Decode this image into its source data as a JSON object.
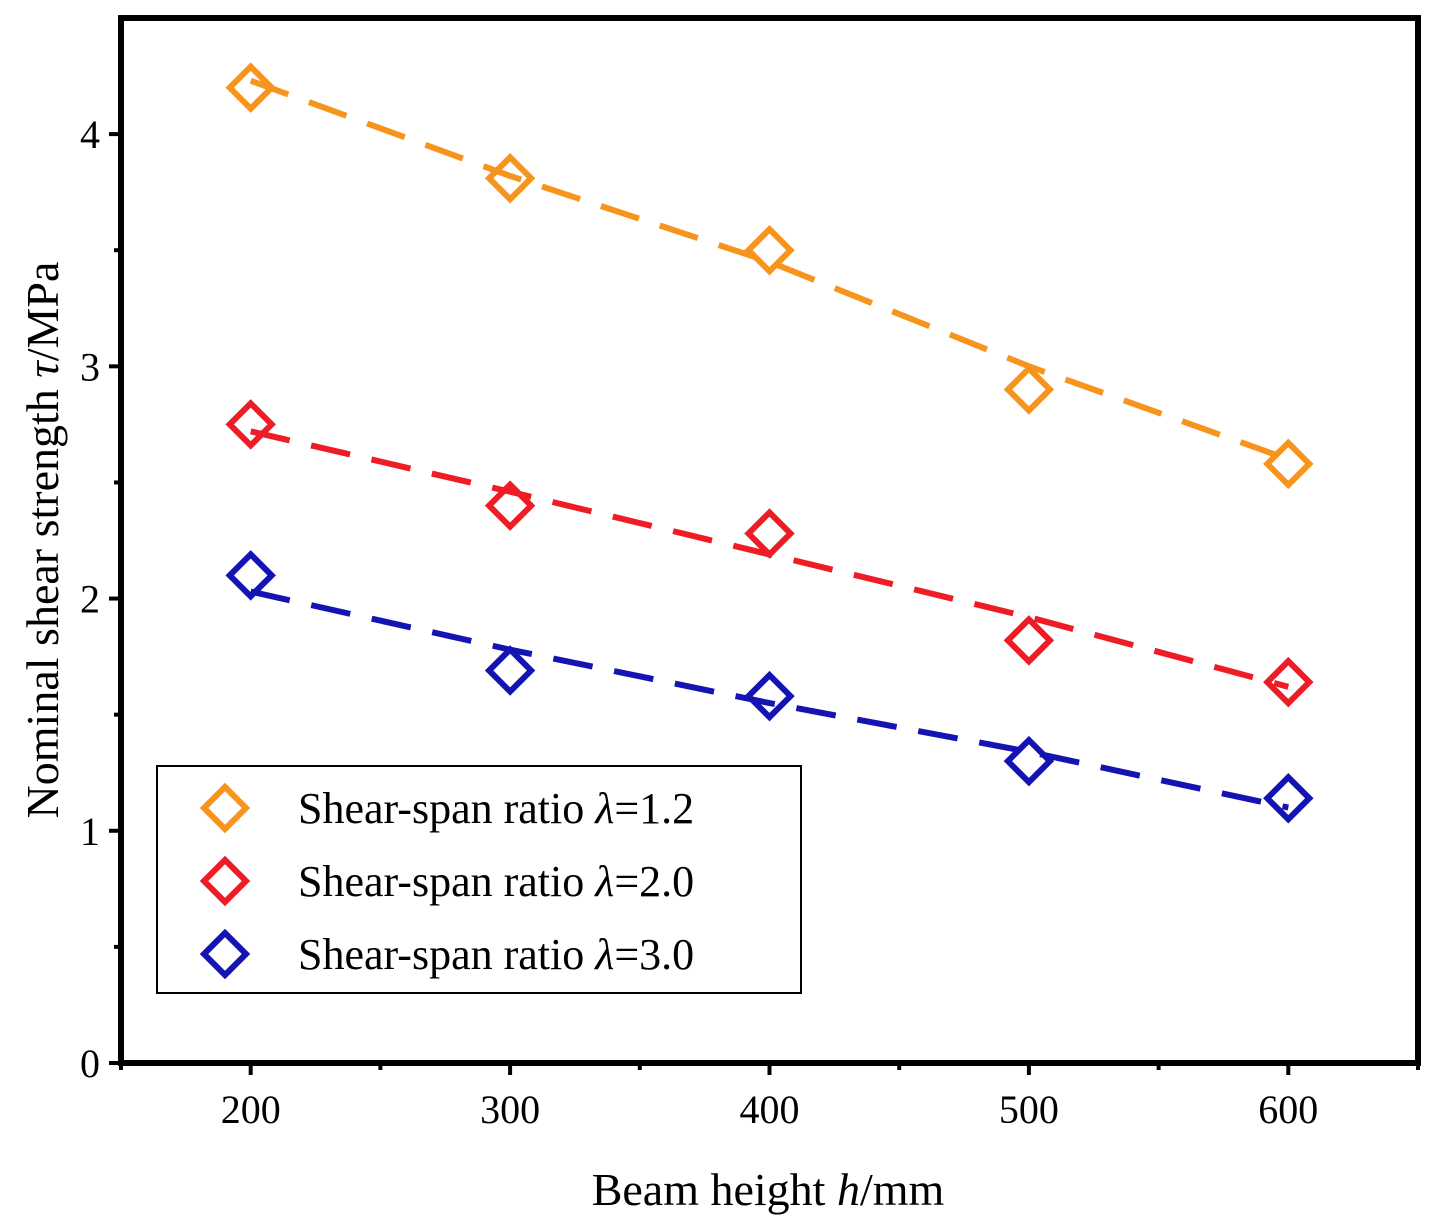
{
  "chart_data": {
    "type": "scatter",
    "title": "",
    "xlabel": {
      "prefix": "Beam height ",
      "var": "h",
      "suffix": "/mm"
    },
    "ylabel": {
      "prefix": "Nominal shear strength ",
      "var": "τ",
      "suffix": "/MPa"
    },
    "xlim": [
      150,
      650
    ],
    "ylim": [
      0,
      4.5
    ],
    "x_ticks": [
      200,
      300,
      400,
      500,
      600
    ],
    "x_tick_labels": [
      "200",
      "300",
      "400",
      "500",
      "600"
    ],
    "x_minor_ticks": [
      150,
      250,
      350,
      450,
      550,
      650
    ],
    "y_ticks": [
      0,
      1,
      2,
      3,
      4
    ],
    "y_tick_labels": [
      "0",
      "1",
      "2",
      "3",
      "4"
    ],
    "y_minor_ticks": [
      0.5,
      1.5,
      2.5,
      3.5
    ],
    "grid": false,
    "legend_position": "bottom-left",
    "x": [
      200,
      300,
      400,
      500,
      600
    ],
    "series": [
      {
        "name": "Shear-span ratio λ=1.2",
        "label_prefix": "Shear-span ratio ",
        "label_var": "λ",
        "label_suffix": "=1.2",
        "color": "#F7941D",
        "marker": "diamond-open",
        "values": [
          4.2,
          3.81,
          3.5,
          2.9,
          2.58
        ],
        "fit": [
          4.23,
          3.82,
          3.45,
          3.0,
          2.6
        ]
      },
      {
        "name": "Shear-span ratio λ=2.0",
        "label_prefix": "Shear-span ratio ",
        "label_var": "λ",
        "label_suffix": "=2.0",
        "color": "#EE1C25",
        "marker": "diamond-open",
        "values": [
          2.75,
          2.4,
          2.28,
          1.82,
          1.64
        ],
        "fit": [
          2.72,
          2.46,
          2.19,
          1.92,
          1.62
        ]
      },
      {
        "name": "Shear-span ratio λ=3.0",
        "label_prefix": "Shear-span ratio ",
        "label_var": "λ",
        "label_suffix": "=3.0",
        "color": "#1414B4",
        "marker": "diamond-open",
        "values": [
          2.1,
          1.69,
          1.58,
          1.3,
          1.14
        ],
        "fit": [
          2.03,
          1.78,
          1.55,
          1.34,
          1.1
        ]
      }
    ]
  }
}
